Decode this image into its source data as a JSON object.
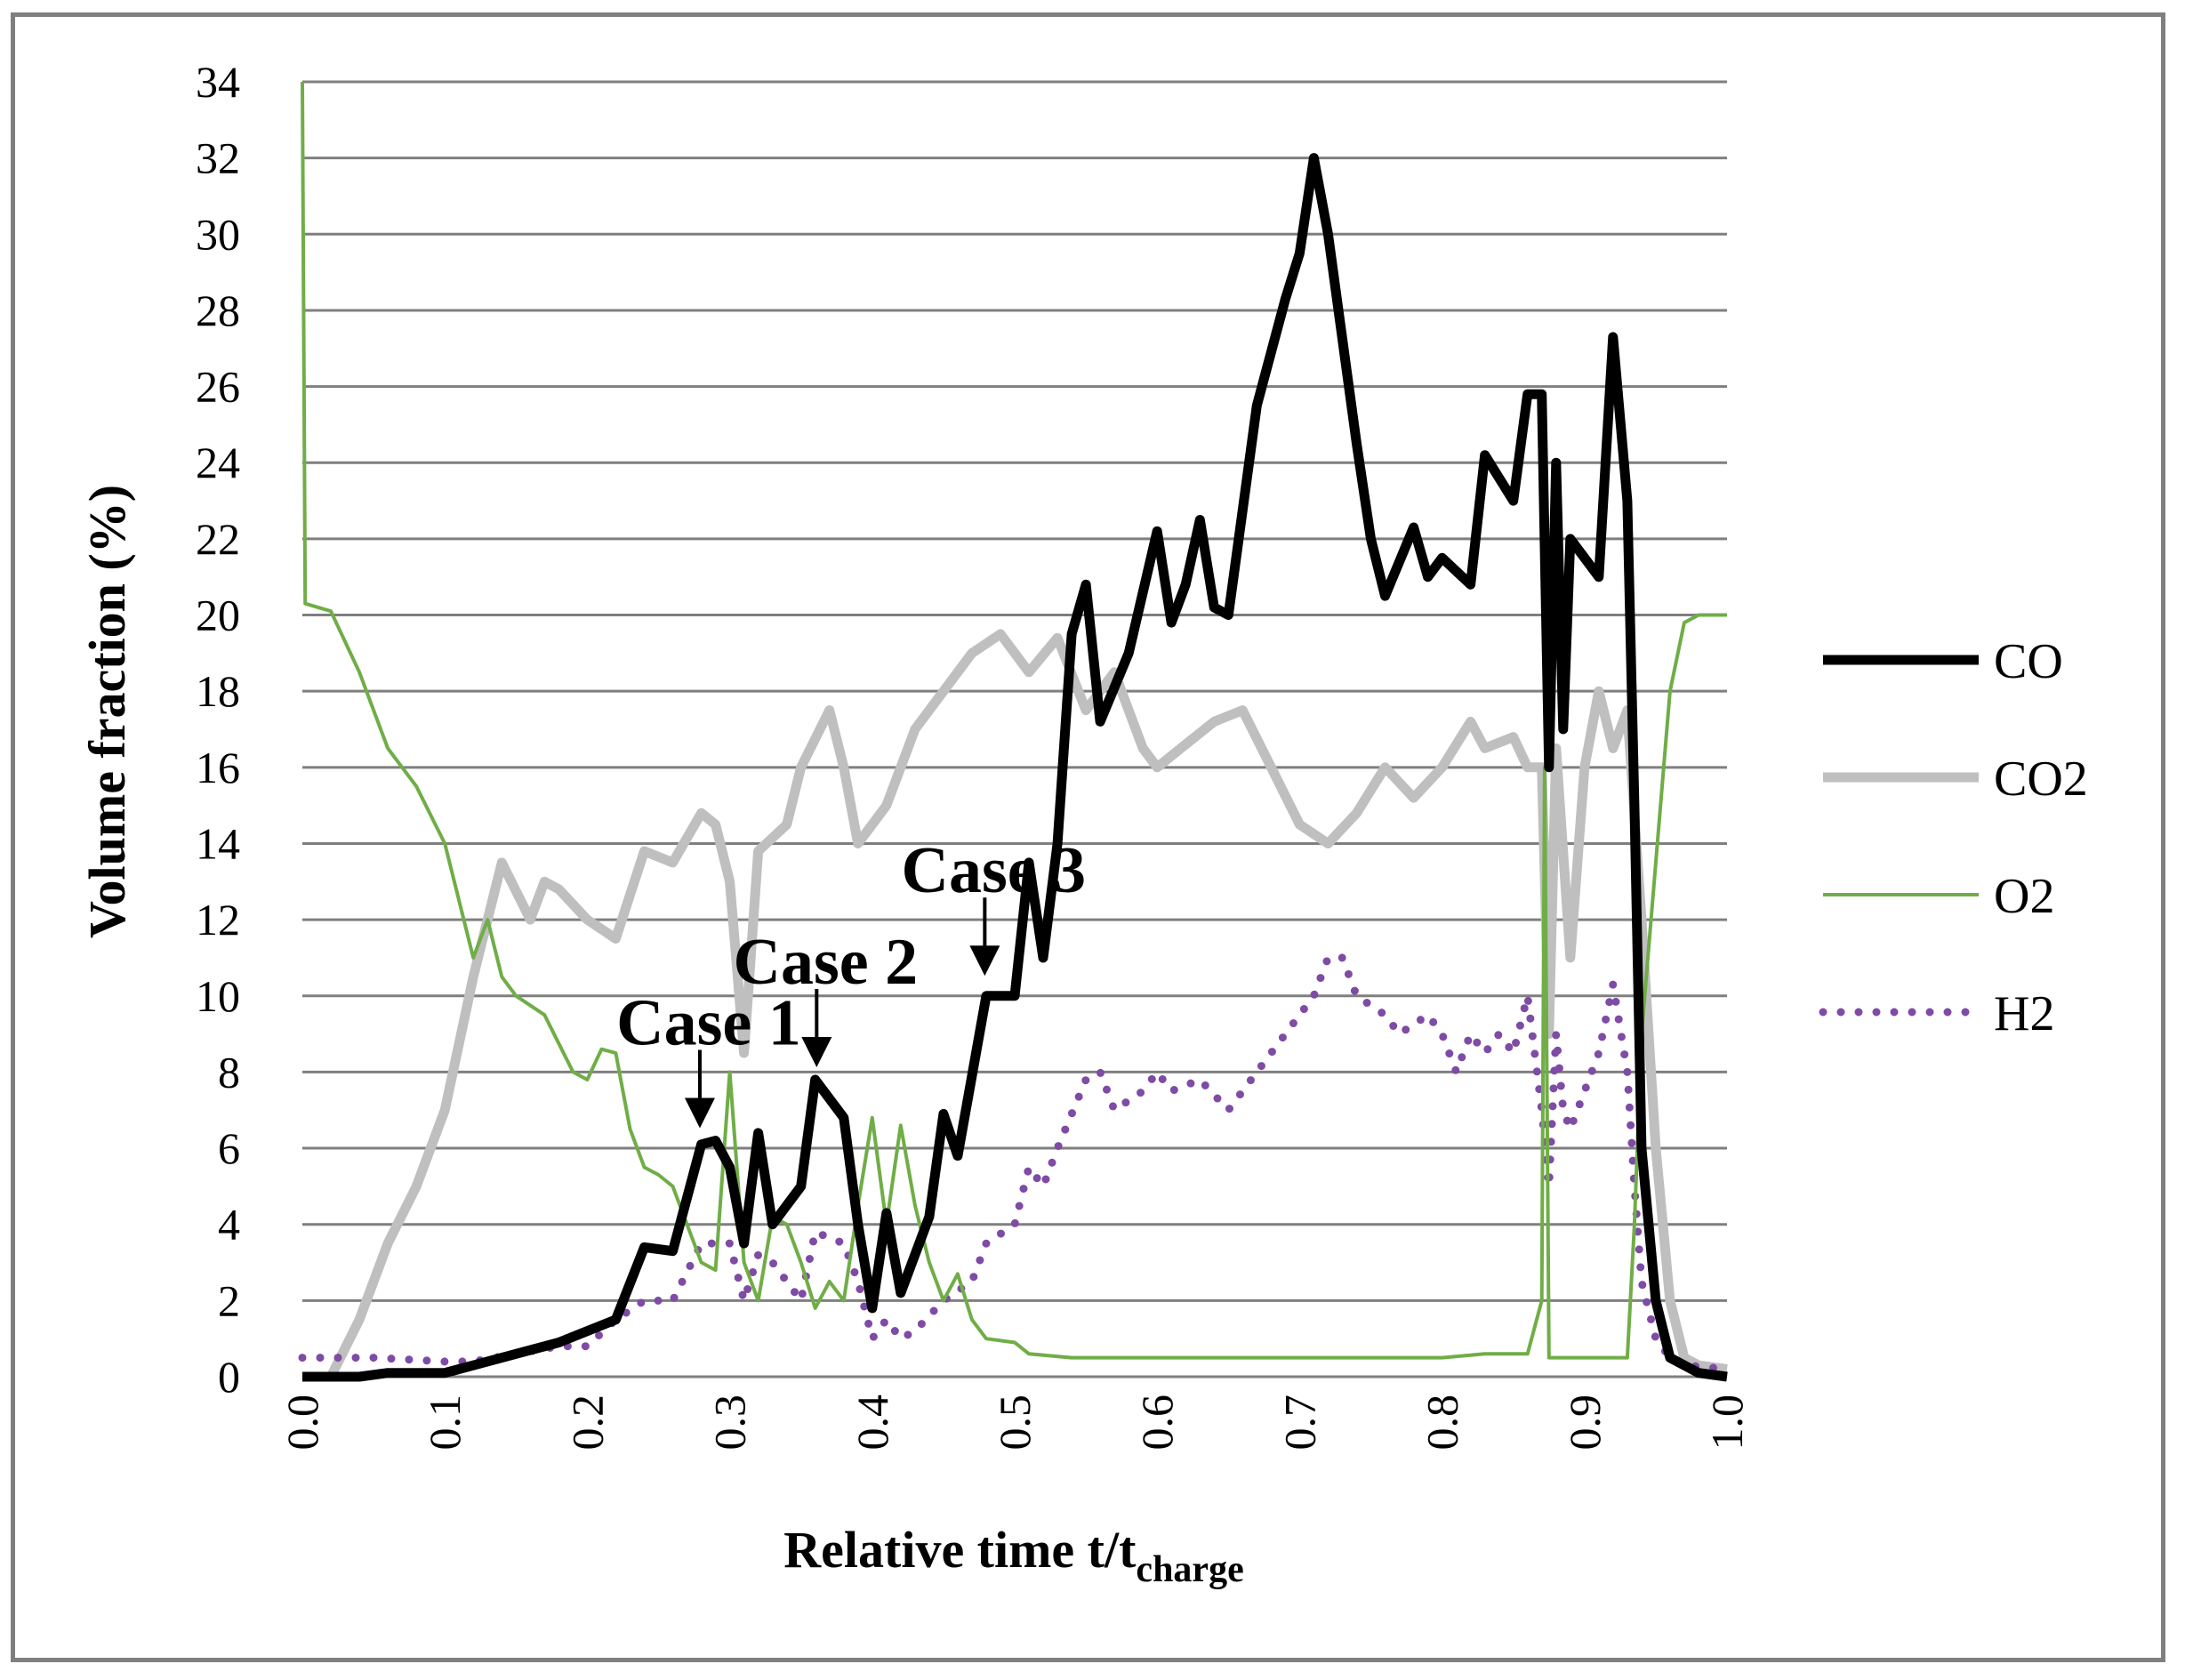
{
  "chart_data": {
    "type": "line",
    "xlabel": "Relative time t/t",
    "xlabel_subscript": "charge",
    "ylabel": "Volume fraction (%)",
    "xlim": [
      0.0,
      1.0
    ],
    "ylim": [
      0,
      34
    ],
    "x_ticks": [
      "0.0",
      "0.1",
      "0.2",
      "0.3",
      "0.4",
      "0.5",
      "0.6",
      "0.7",
      "0.8",
      "0.9",
      "1.0"
    ],
    "y_ticks": [
      "0",
      "2",
      "4",
      "6",
      "8",
      "10",
      "12",
      "14",
      "16",
      "18",
      "20",
      "22",
      "24",
      "26",
      "28",
      "30",
      "32",
      "34"
    ],
    "grid": "horizontal",
    "legend_position": "right",
    "series": [
      {
        "name": "CO",
        "color": "#000000",
        "style": "solid-thick",
        "points": [
          [
            0.0,
            0.0
          ],
          [
            0.04,
            0.0
          ],
          [
            0.06,
            0.1
          ],
          [
            0.1,
            0.1
          ],
          [
            0.12,
            0.3
          ],
          [
            0.15,
            0.6
          ],
          [
            0.18,
            0.9
          ],
          [
            0.2,
            1.2
          ],
          [
            0.22,
            1.5
          ],
          [
            0.24,
            3.4
          ],
          [
            0.26,
            3.3
          ],
          [
            0.28,
            6.1
          ],
          [
            0.29,
            6.2
          ],
          [
            0.3,
            5.5
          ],
          [
            0.31,
            3.5
          ],
          [
            0.32,
            6.4
          ],
          [
            0.33,
            4.0
          ],
          [
            0.35,
            5.0
          ],
          [
            0.36,
            7.8
          ],
          [
            0.38,
            6.8
          ],
          [
            0.39,
            4.0
          ],
          [
            0.4,
            1.8
          ],
          [
            0.41,
            4.3
          ],
          [
            0.42,
            2.2
          ],
          [
            0.44,
            4.2
          ],
          [
            0.45,
            6.9
          ],
          [
            0.46,
            5.8
          ],
          [
            0.48,
            10.0
          ],
          [
            0.5,
            10.0
          ],
          [
            0.51,
            13.5
          ],
          [
            0.52,
            11.0
          ],
          [
            0.53,
            14.0
          ],
          [
            0.54,
            19.5
          ],
          [
            0.55,
            20.8
          ],
          [
            0.56,
            17.2
          ],
          [
            0.58,
            19.0
          ],
          [
            0.6,
            22.2
          ],
          [
            0.61,
            19.8
          ],
          [
            0.62,
            20.8
          ],
          [
            0.63,
            22.5
          ],
          [
            0.64,
            20.2
          ],
          [
            0.65,
            20.0
          ],
          [
            0.67,
            25.5
          ],
          [
            0.69,
            28.3
          ],
          [
            0.7,
            29.5
          ],
          [
            0.71,
            32.0
          ],
          [
            0.72,
            30.0
          ],
          [
            0.74,
            24.5
          ],
          [
            0.75,
            22.0
          ],
          [
            0.76,
            20.5
          ],
          [
            0.78,
            22.3
          ],
          [
            0.79,
            21.0
          ],
          [
            0.8,
            21.5
          ],
          [
            0.82,
            20.8
          ],
          [
            0.83,
            24.2
          ],
          [
            0.85,
            23.0
          ],
          [
            0.86,
            25.8
          ],
          [
            0.87,
            25.8
          ],
          [
            0.875,
            16.0
          ],
          [
            0.88,
            24.0
          ],
          [
            0.885,
            17.0
          ],
          [
            0.89,
            22.0
          ],
          [
            0.9,
            21.5
          ],
          [
            0.91,
            21.0
          ],
          [
            0.92,
            27.3
          ],
          [
            0.93,
            23.0
          ],
          [
            0.935,
            15.0
          ],
          [
            0.94,
            6.0
          ],
          [
            0.95,
            2.0
          ],
          [
            0.96,
            0.5
          ],
          [
            0.98,
            0.1
          ],
          [
            1.0,
            0.0
          ]
        ]
      },
      {
        "name": "CO2",
        "color": "#bfbfbf",
        "style": "solid-thick",
        "points": [
          [
            0.0,
            0.0
          ],
          [
            0.02,
            0.0
          ],
          [
            0.04,
            1.5
          ],
          [
            0.06,
            3.5
          ],
          [
            0.08,
            5.0
          ],
          [
            0.1,
            7.0
          ],
          [
            0.12,
            10.5
          ],
          [
            0.14,
            13.5
          ],
          [
            0.16,
            12.0
          ],
          [
            0.17,
            13.0
          ],
          [
            0.18,
            12.8
          ],
          [
            0.2,
            12.0
          ],
          [
            0.22,
            11.5
          ],
          [
            0.24,
            13.8
          ],
          [
            0.26,
            13.5
          ],
          [
            0.28,
            14.8
          ],
          [
            0.29,
            14.5
          ],
          [
            0.3,
            13.0
          ],
          [
            0.31,
            8.5
          ],
          [
            0.32,
            13.8
          ],
          [
            0.34,
            14.5
          ],
          [
            0.35,
            16.0
          ],
          [
            0.37,
            17.5
          ],
          [
            0.38,
            16.0
          ],
          [
            0.39,
            14.0
          ],
          [
            0.4,
            14.5
          ],
          [
            0.41,
            15.0
          ],
          [
            0.43,
            17.0
          ],
          [
            0.45,
            18.0
          ],
          [
            0.47,
            19.0
          ],
          [
            0.49,
            19.5
          ],
          [
            0.5,
            19.0
          ],
          [
            0.51,
            18.5
          ],
          [
            0.53,
            19.4
          ],
          [
            0.55,
            17.5
          ],
          [
            0.57,
            18.5
          ],
          [
            0.59,
            16.5
          ],
          [
            0.6,
            16.0
          ],
          [
            0.62,
            16.6
          ],
          [
            0.64,
            17.2
          ],
          [
            0.66,
            17.5
          ],
          [
            0.68,
            16.0
          ],
          [
            0.7,
            14.5
          ],
          [
            0.72,
            14.0
          ],
          [
            0.74,
            14.8
          ],
          [
            0.76,
            16.0
          ],
          [
            0.78,
            15.2
          ],
          [
            0.8,
            16.0
          ],
          [
            0.82,
            17.2
          ],
          [
            0.83,
            16.5
          ],
          [
            0.85,
            16.8
          ],
          [
            0.86,
            16.0
          ],
          [
            0.87,
            16.0
          ],
          [
            0.875,
            9.0
          ],
          [
            0.88,
            16.5
          ],
          [
            0.89,
            11.0
          ],
          [
            0.9,
            16.0
          ],
          [
            0.91,
            18.0
          ],
          [
            0.92,
            16.5
          ],
          [
            0.93,
            17.5
          ],
          [
            0.94,
            12.0
          ],
          [
            0.95,
            6.0
          ],
          [
            0.96,
            2.0
          ],
          [
            0.97,
            0.5
          ],
          [
            0.98,
            0.3
          ],
          [
            1.0,
            0.2
          ]
        ]
      },
      {
        "name": "O2",
        "color": "#70ad47",
        "style": "solid-thin",
        "points": [
          [
            0.0,
            34.0
          ],
          [
            0.002,
            20.3
          ],
          [
            0.02,
            20.1
          ],
          [
            0.04,
            18.5
          ],
          [
            0.06,
            16.5
          ],
          [
            0.08,
            15.5
          ],
          [
            0.1,
            14.0
          ],
          [
            0.11,
            12.5
          ],
          [
            0.12,
            11.0
          ],
          [
            0.13,
            12.0
          ],
          [
            0.14,
            10.5
          ],
          [
            0.15,
            10.0
          ],
          [
            0.17,
            9.5
          ],
          [
            0.19,
            8.0
          ],
          [
            0.2,
            7.8
          ],
          [
            0.21,
            8.6
          ],
          [
            0.22,
            8.5
          ],
          [
            0.23,
            6.5
          ],
          [
            0.24,
            5.5
          ],
          [
            0.25,
            5.3
          ],
          [
            0.26,
            5.0
          ],
          [
            0.27,
            4.0
          ],
          [
            0.28,
            3.0
          ],
          [
            0.29,
            2.8
          ],
          [
            0.3,
            8.0
          ],
          [
            0.31,
            3.0
          ],
          [
            0.32,
            2.0
          ],
          [
            0.33,
            4.2
          ],
          [
            0.34,
            4.0
          ],
          [
            0.35,
            3.0
          ],
          [
            0.36,
            1.8
          ],
          [
            0.37,
            2.5
          ],
          [
            0.38,
            2.0
          ],
          [
            0.39,
            4.5
          ],
          [
            0.4,
            6.8
          ],
          [
            0.41,
            4.0
          ],
          [
            0.42,
            6.6
          ],
          [
            0.43,
            4.5
          ],
          [
            0.44,
            3.0
          ],
          [
            0.45,
            2.0
          ],
          [
            0.46,
            2.7
          ],
          [
            0.47,
            1.5
          ],
          [
            0.48,
            1.0
          ],
          [
            0.5,
            0.9
          ],
          [
            0.51,
            0.6
          ],
          [
            0.54,
            0.5
          ],
          [
            0.6,
            0.5
          ],
          [
            0.7,
            0.5
          ],
          [
            0.8,
            0.5
          ],
          [
            0.83,
            0.6
          ],
          [
            0.86,
            0.6
          ],
          [
            0.87,
            2.0
          ],
          [
            0.872,
            16.0
          ],
          [
            0.875,
            0.5
          ],
          [
            0.93,
            0.5
          ],
          [
            0.935,
            4.0
          ],
          [
            0.94,
            9.0
          ],
          [
            0.95,
            13.5
          ],
          [
            0.96,
            18.0
          ],
          [
            0.97,
            19.8
          ],
          [
            0.98,
            20.0
          ],
          [
            1.0,
            20.0
          ]
        ]
      },
      {
        "name": "H2",
        "color": "#7e4ba5",
        "style": "dotted",
        "points": [
          [
            0.0,
            0.5
          ],
          [
            0.05,
            0.5
          ],
          [
            0.1,
            0.4
          ],
          [
            0.12,
            0.4
          ],
          [
            0.15,
            0.6
          ],
          [
            0.18,
            0.8
          ],
          [
            0.2,
            0.8
          ],
          [
            0.22,
            1.5
          ],
          [
            0.24,
            2.0
          ],
          [
            0.26,
            2.0
          ],
          [
            0.28,
            3.5
          ],
          [
            0.3,
            3.5
          ],
          [
            0.31,
            2.0
          ],
          [
            0.32,
            3.2
          ],
          [
            0.33,
            3.0
          ],
          [
            0.34,
            2.5
          ],
          [
            0.35,
            2.0
          ],
          [
            0.36,
            3.8
          ],
          [
            0.38,
            3.5
          ],
          [
            0.39,
            2.5
          ],
          [
            0.4,
            1.0
          ],
          [
            0.41,
            1.5
          ],
          [
            0.42,
            1.0
          ],
          [
            0.43,
            1.2
          ],
          [
            0.45,
            2.0
          ],
          [
            0.47,
            2.5
          ],
          [
            0.48,
            3.5
          ],
          [
            0.5,
            4.0
          ],
          [
            0.51,
            5.5
          ],
          [
            0.52,
            5.0
          ],
          [
            0.53,
            6.0
          ],
          [
            0.55,
            7.8
          ],
          [
            0.56,
            8.0
          ],
          [
            0.57,
            7.0
          ],
          [
            0.59,
            7.5
          ],
          [
            0.6,
            8.0
          ],
          [
            0.61,
            7.5
          ],
          [
            0.63,
            7.8
          ],
          [
            0.65,
            7.0
          ],
          [
            0.67,
            8.0
          ],
          [
            0.69,
            9.0
          ],
          [
            0.71,
            10.0
          ],
          [
            0.72,
            11.0
          ],
          [
            0.73,
            11.0
          ],
          [
            0.74,
            10.0
          ],
          [
            0.76,
            9.5
          ],
          [
            0.77,
            9.0
          ],
          [
            0.79,
            9.5
          ],
          [
            0.8,
            9.0
          ],
          [
            0.81,
            8.0
          ],
          [
            0.82,
            9.0
          ],
          [
            0.83,
            8.5
          ],
          [
            0.84,
            9.0
          ],
          [
            0.85,
            8.5
          ],
          [
            0.86,
            10.0
          ],
          [
            0.87,
            7.0
          ],
          [
            0.875,
            5.0
          ],
          [
            0.88,
            9.0
          ],
          [
            0.885,
            7.0
          ],
          [
            0.89,
            6.5
          ],
          [
            0.9,
            7.5
          ],
          [
            0.91,
            8.5
          ],
          [
            0.92,
            10.3
          ],
          [
            0.93,
            8.0
          ],
          [
            0.935,
            5.0
          ],
          [
            0.94,
            2.5
          ],
          [
            0.95,
            1.0
          ],
          [
            0.96,
            0.5
          ],
          [
            0.97,
            0.3
          ],
          [
            1.0,
            0.2
          ]
        ]
      }
    ],
    "annotations": [
      {
        "text": "Case 1",
        "x": 0.279,
        "y": 6.2
      },
      {
        "text": "Case 2",
        "x": 0.361,
        "y": 7.8
      },
      {
        "text": "Case 3",
        "x": 0.479,
        "y": 10.2
      }
    ]
  }
}
